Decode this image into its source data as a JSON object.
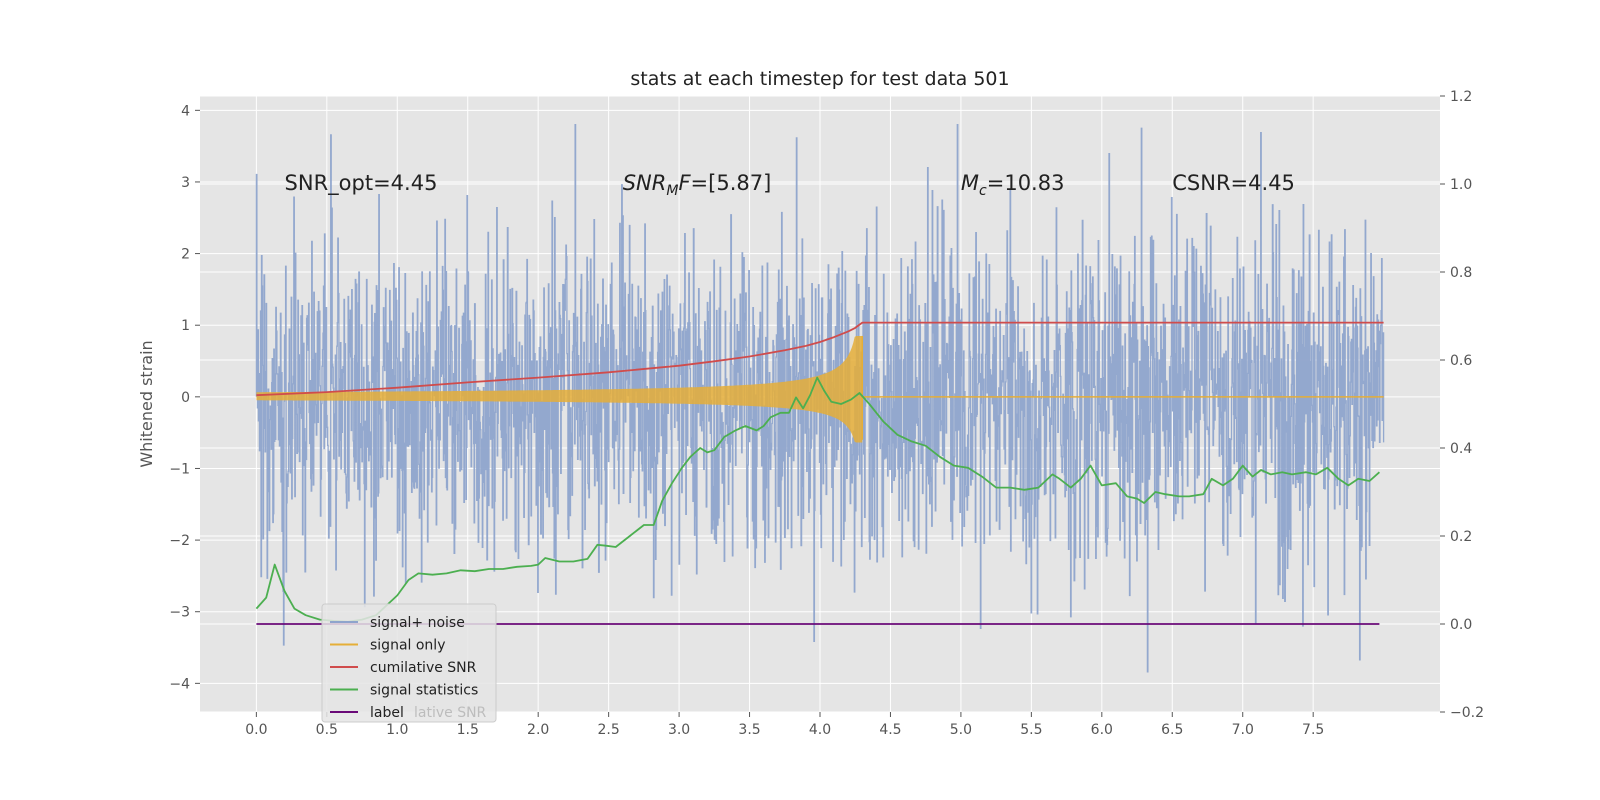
{
  "chart_data": {
    "type": "line",
    "title": "stats at each timestep for test data 501",
    "ylabel": "Whitened strain",
    "xlabel": "",
    "xlim": [
      -0.4,
      8.4
    ],
    "ylim": [
      -4.4,
      4.2
    ],
    "y2lim": [
      -0.2,
      1.2
    ],
    "xticks": [
      0.0,
      0.5,
      1.0,
      1.5,
      2.0,
      2.5,
      3.0,
      3.5,
      4.0,
      4.5,
      5.0,
      5.5,
      6.0,
      6.5,
      7.0,
      7.5
    ],
    "xtick_labels": [
      "0.0",
      "0.5",
      "1.0",
      "1.5",
      "2.0",
      "2.5",
      "3.0",
      "3.5",
      "4.0",
      "4.5",
      "5.0",
      "5.5",
      "6.0",
      "6.5",
      "7.0",
      "7.5"
    ],
    "yticks": [
      -4,
      -3,
      -2,
      -1,
      0,
      1,
      2,
      3,
      4
    ],
    "ytick_labels": [
      "−4",
      "−3",
      "−2",
      "−1",
      "0",
      "1",
      "2",
      "3",
      "4"
    ],
    "y2ticks": [
      -0.2,
      0.0,
      0.2,
      0.4,
      0.6,
      0.8,
      1.0,
      1.2
    ],
    "y2tick_labels": [
      "−0.2",
      "0.0",
      "0.2",
      "0.4",
      "0.6",
      "0.8",
      "1.0",
      "1.2"
    ],
    "grid": true,
    "annotations": [
      {
        "x": 0.2,
        "y": 3.0,
        "text": "SNR_opt=4.45",
        "italic_sub": false
      },
      {
        "x": 2.6,
        "y": 3.0,
        "text": "SNR",
        "sub": "M",
        "rest": "F=[5.87]",
        "italic_sub": true
      },
      {
        "x": 5.0,
        "y": 3.0,
        "text": "M",
        "sub": "c",
        "rest": "=10.83",
        "italic_sub": true
      },
      {
        "x": 6.5,
        "y": 3.0,
        "text": "CSNR=4.45",
        "italic_sub": false
      }
    ],
    "series": [
      {
        "name": "signal+ noise",
        "axis": "left",
        "color": "#8ea4cc",
        "kind": "noise",
        "t_start": 0.0,
        "t_end": 8.0,
        "amplitude_range": [
          -4.05,
          3.8
        ]
      },
      {
        "name": "signal only",
        "axis": "left",
        "color": "#e5ae38",
        "kind": "chirp",
        "t_start": 0.0,
        "t_end": 8.0,
        "merger_time": 4.3,
        "peak_amplitude": 0.85
      },
      {
        "name": "cumilative SNR",
        "axis": "right",
        "color": "#d04c4c",
        "x": [
          0.0,
          0.5,
          1.0,
          1.5,
          2.0,
          2.5,
          3.0,
          3.25,
          3.5,
          3.75,
          3.9,
          4.0,
          4.1,
          4.2,
          4.25,
          4.3,
          8.0
        ],
        "y": [
          0.52,
          0.527,
          0.537,
          0.549,
          0.56,
          0.572,
          0.587,
          0.597,
          0.608,
          0.622,
          0.632,
          0.641,
          0.652,
          0.665,
          0.673,
          0.685,
          0.685
        ]
      },
      {
        "name": "signal statistics",
        "axis": "right",
        "color": "#4caf50",
        "x": [
          0.0,
          0.07,
          0.13,
          0.2,
          0.27,
          0.35,
          0.45,
          0.55,
          0.65,
          0.75,
          0.85,
          0.95,
          1.0,
          1.08,
          1.15,
          1.25,
          1.35,
          1.45,
          1.55,
          1.65,
          1.75,
          1.85,
          1.95,
          2.0,
          2.05,
          2.15,
          2.25,
          2.35,
          2.42,
          2.48,
          2.55,
          2.65,
          2.75,
          2.82,
          2.88,
          2.95,
          3.02,
          3.08,
          3.15,
          3.2,
          3.25,
          3.32,
          3.4,
          3.47,
          3.55,
          3.6,
          3.65,
          3.72,
          3.78,
          3.83,
          3.88,
          3.93,
          3.98,
          4.03,
          4.08,
          4.15,
          4.22,
          4.28,
          4.35,
          4.45,
          4.55,
          4.65,
          4.75,
          4.85,
          4.95,
          5.05,
          5.15,
          5.25,
          5.35,
          5.45,
          5.55,
          5.65,
          5.7,
          5.78,
          5.85,
          5.92,
          6.0,
          6.1,
          6.18,
          6.25,
          6.3,
          6.38,
          6.45,
          6.55,
          6.62,
          6.72,
          6.78,
          6.86,
          6.93,
          7.0,
          7.07,
          7.13,
          7.2,
          7.28,
          7.35,
          7.45,
          7.52,
          7.6,
          7.68,
          7.75,
          7.82,
          7.9,
          7.97
        ],
        "y": [
          0.035,
          0.06,
          0.135,
          0.075,
          0.035,
          0.02,
          0.01,
          0.007,
          0.005,
          0.01,
          0.02,
          0.05,
          0.065,
          0.1,
          0.115,
          0.112,
          0.115,
          0.122,
          0.12,
          0.125,
          0.125,
          0.13,
          0.132,
          0.135,
          0.15,
          0.142,
          0.142,
          0.148,
          0.18,
          0.178,
          0.175,
          0.2,
          0.225,
          0.225,
          0.28,
          0.32,
          0.355,
          0.38,
          0.4,
          0.39,
          0.395,
          0.425,
          0.44,
          0.45,
          0.44,
          0.45,
          0.47,
          0.48,
          0.48,
          0.515,
          0.49,
          0.52,
          0.56,
          0.53,
          0.505,
          0.5,
          0.51,
          0.525,
          0.5,
          0.46,
          0.43,
          0.415,
          0.405,
          0.38,
          0.36,
          0.355,
          0.335,
          0.31,
          0.31,
          0.305,
          0.31,
          0.34,
          0.33,
          0.31,
          0.33,
          0.36,
          0.315,
          0.32,
          0.29,
          0.285,
          0.275,
          0.3,
          0.295,
          0.29,
          0.29,
          0.295,
          0.33,
          0.315,
          0.33,
          0.36,
          0.335,
          0.35,
          0.34,
          0.345,
          0.34,
          0.345,
          0.34,
          0.355,
          0.33,
          0.315,
          0.33,
          0.325,
          0.345
        ]
      },
      {
        "name": "label",
        "axis": "right",
        "color": "#6a0a78",
        "x": [
          0.0,
          7.97
        ],
        "y": [
          0.0,
          0.0
        ]
      }
    ],
    "legend": {
      "position": "lower-left",
      "entries": [
        "signal+ noise",
        "signal only",
        "cumilative SNR",
        "signal statistics",
        "label"
      ],
      "ghost_text": "lative SNR"
    }
  }
}
